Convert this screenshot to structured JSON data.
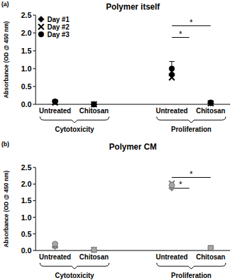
{
  "chart_data": [
    {
      "type": "scatter",
      "panel": "(a)",
      "title": "Polymer itself",
      "y_label": "Absorbance (OD @ 450 nm)",
      "categories": [
        "Untreated",
        "Chitosan",
        null,
        "Untreated",
        "Chitosan"
      ],
      "group_labels": [
        "Cytotoxicity",
        "Proliferation"
      ],
      "annotations": [
        "*",
        "*"
      ],
      "series": [
        {
          "name": "Day #1",
          "color": "#000000",
          "marker": "diamond",
          "values": [
            0.07,
            0.0,
            null,
            0.85,
            0.03
          ]
        },
        {
          "name": "Day #2",
          "color": "#000000",
          "marker": "x",
          "values": [
            0.05,
            0.0,
            null,
            0.75,
            0.03
          ]
        },
        {
          "name": "Day #3",
          "color": "#000000",
          "marker": "circle",
          "values": [
            0.08,
            0.0,
            null,
            1.0,
            0.05
          ],
          "errors": [
            null,
            null,
            null,
            0.2,
            null
          ]
        }
      ],
      "ylim": [
        0,
        2.5
      ],
      "yticks": [
        {
          "value": 0,
          "label": "0.0"
        },
        {
          "value": 0.5,
          "label": "0.5"
        },
        {
          "value": 1,
          "label": "1.0"
        },
        {
          "value": 1.5,
          "label": "1.5"
        },
        {
          "value": 2,
          "label": "2.0"
        },
        {
          "value": 2.5,
          "label": "2.5"
        }
      ],
      "legend": "upper left",
      "grid": false
    },
    {
      "type": "scatter",
      "panel": "(b)",
      "title": "Polymer CM",
      "y_label": "Absorbance (OD @ 450 nm)",
      "categories": [
        "Untreated",
        "Chitosan",
        null,
        "Untreated",
        "Chitosan"
      ],
      "group_labels": [
        "Cytotoxicity",
        "Proliferation"
      ],
      "annotations": [
        "*",
        "*"
      ],
      "series": [
        {
          "name": "Day #1",
          "color": "#8c8c8c",
          "marker": "diamond",
          "values": [
            0.12,
            0.02,
            null,
            1.88,
            0.07
          ]
        },
        {
          "name": "Day #2",
          "color": "#7a7a7a",
          "marker": "x",
          "values": [
            0.15,
            0.02,
            null,
            2.02,
            0.07
          ]
        },
        {
          "name": "Day #3",
          "color": "#a6a6a6",
          "marker": "circle",
          "values": [
            0.2,
            0.02,
            null,
            1.97,
            0.08
          ]
        }
      ],
      "ylim": [
        0,
        2.5
      ],
      "yticks": [
        {
          "value": 0,
          "label": "0.0"
        },
        {
          "value": 0.5,
          "label": "0.5"
        },
        {
          "value": 1,
          "label": "1.0"
        },
        {
          "value": 1.5,
          "label": "1.5"
        },
        {
          "value": 2,
          "label": "2.0"
        },
        {
          "value": 2.5,
          "label": "2.5"
        }
      ],
      "grid": false
    }
  ]
}
